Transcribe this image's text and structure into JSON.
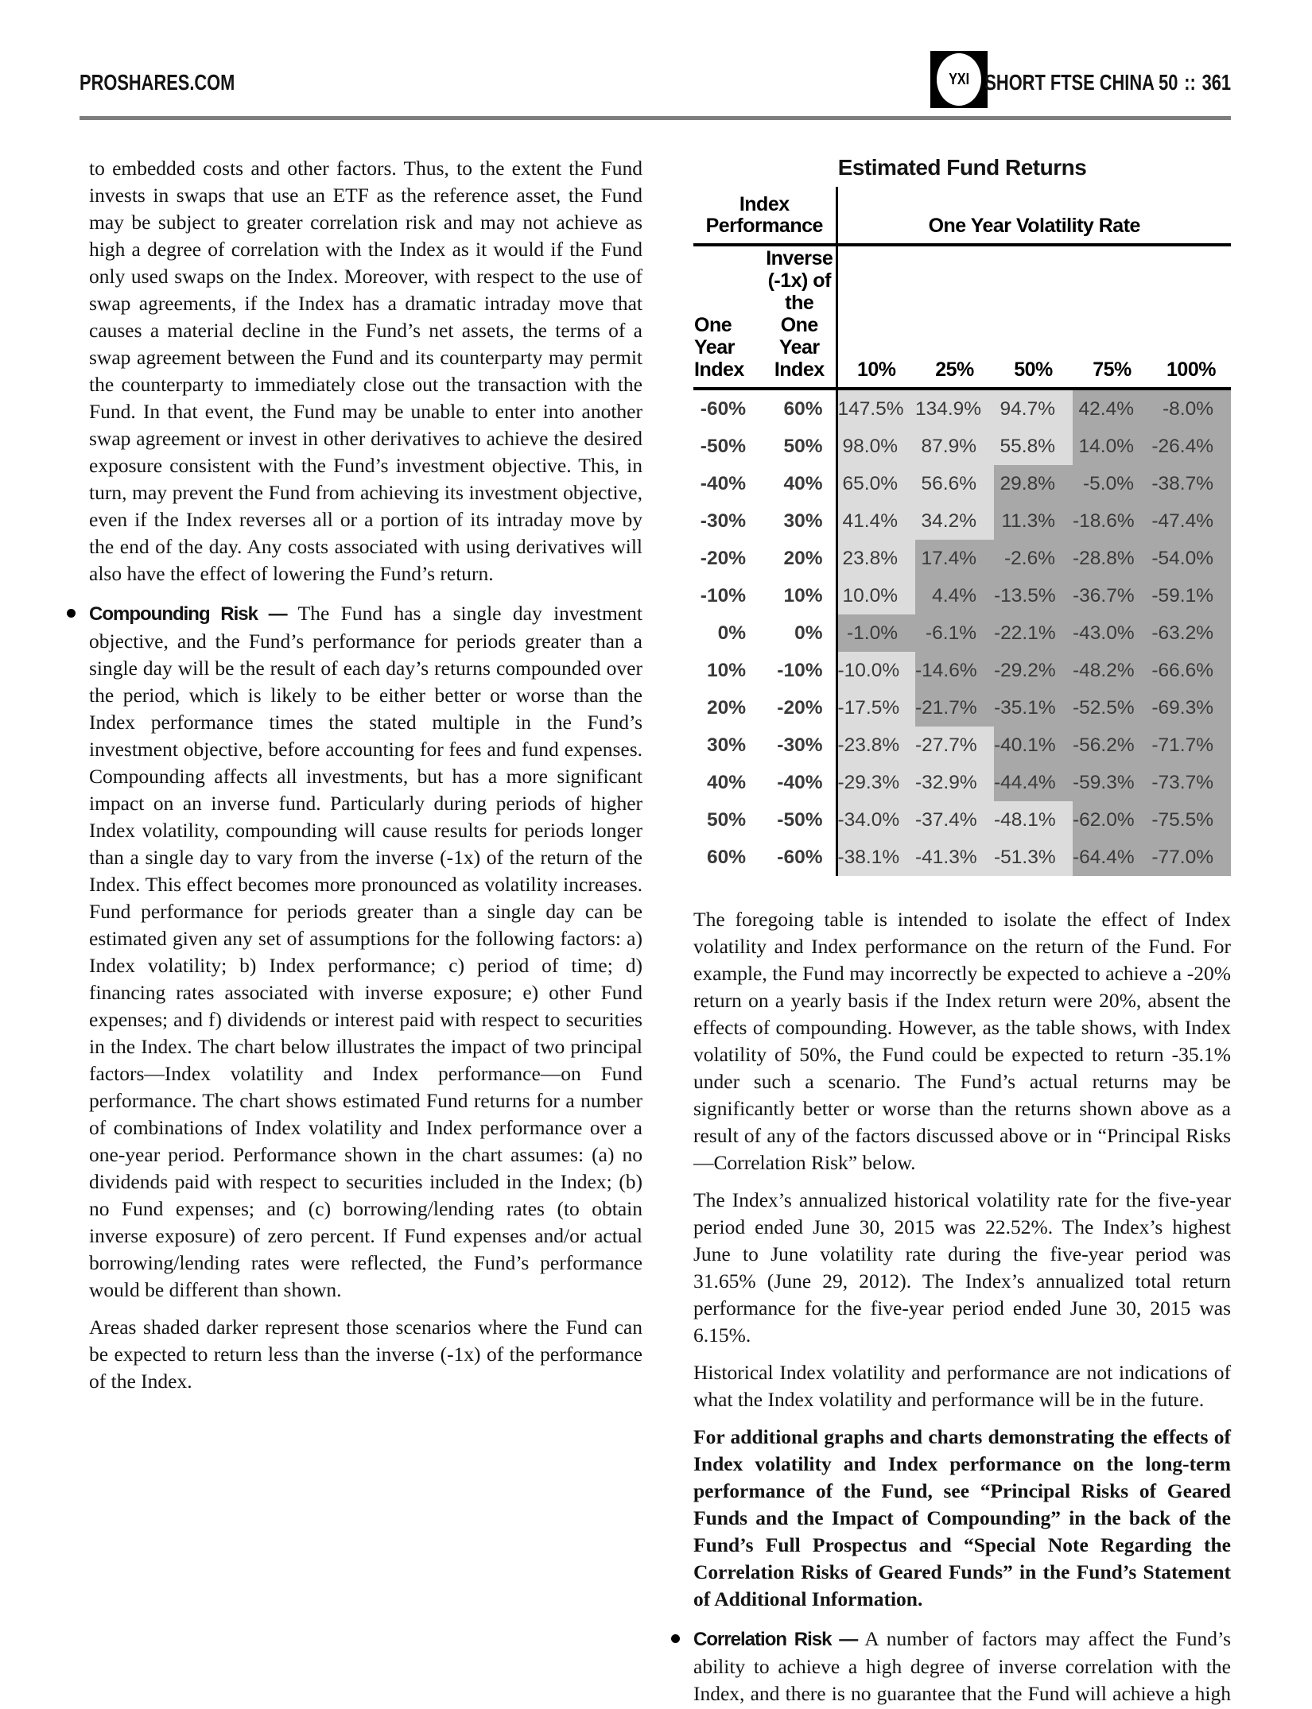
{
  "header": {
    "brand": "PROSHARES.COM",
    "badge": "YXI",
    "fund_name": "SHORT FTSE CHINA 50",
    "separator": "::",
    "page_number": "361"
  },
  "colors": {
    "light_shade": "#dcdcdc",
    "dark_shade": "#a8a8a8",
    "header_rule": "#7e7e7e"
  },
  "table": {
    "title": "Estimated Fund Returns",
    "group_left": "Index Performance",
    "group_right": "One Year Volatility Rate",
    "col1_header": "One Year Index",
    "col2_header": "Inverse (-1x) of the One Year Index",
    "vol_headers": [
      "10%",
      "25%",
      "50%",
      "75%",
      "100%"
    ],
    "shading_note": "dark cells = Fund expected to return less than the inverse (-1x) of the Index",
    "rows": [
      {
        "index": "-60%",
        "inverse": "60%",
        "values": [
          "147.5%",
          "134.9%",
          "94.7%",
          "42.4%",
          "-8.0%"
        ],
        "dark_from": 3
      },
      {
        "index": "-50%",
        "inverse": "50%",
        "values": [
          "98.0%",
          "87.9%",
          "55.8%",
          "14.0%",
          "-26.4%"
        ],
        "dark_from": 3
      },
      {
        "index": "-40%",
        "inverse": "40%",
        "values": [
          "65.0%",
          "56.6%",
          "29.8%",
          "-5.0%",
          "-38.7%"
        ],
        "dark_from": 2
      },
      {
        "index": "-30%",
        "inverse": "30%",
        "values": [
          "41.4%",
          "34.2%",
          "11.3%",
          "-18.6%",
          "-47.4%"
        ],
        "dark_from": 2
      },
      {
        "index": "-20%",
        "inverse": "20%",
        "values": [
          "23.8%",
          "17.4%",
          "-2.6%",
          "-28.8%",
          "-54.0%"
        ],
        "dark_from": 1
      },
      {
        "index": "-10%",
        "inverse": "10%",
        "values": [
          "10.0%",
          "4.4%",
          "-13.5%",
          "-36.7%",
          "-59.1%"
        ],
        "dark_from": 1
      },
      {
        "index": "0%",
        "inverse": "0%",
        "values": [
          "-1.0%",
          "-6.1%",
          "-22.1%",
          "-43.0%",
          "-63.2%"
        ],
        "dark_from": 0
      },
      {
        "index": "10%",
        "inverse": "-10%",
        "values": [
          "-10.0%",
          "-14.6%",
          "-29.2%",
          "-48.2%",
          "-66.6%"
        ],
        "dark_from": 1
      },
      {
        "index": "20%",
        "inverse": "-20%",
        "values": [
          "-17.5%",
          "-21.7%",
          "-35.1%",
          "-52.5%",
          "-69.3%"
        ],
        "dark_from": 1
      },
      {
        "index": "30%",
        "inverse": "-30%",
        "values": [
          "-23.8%",
          "-27.7%",
          "-40.1%",
          "-56.2%",
          "-71.7%"
        ],
        "dark_from": 2
      },
      {
        "index": "40%",
        "inverse": "-40%",
        "values": [
          "-29.3%",
          "-32.9%",
          "-44.4%",
          "-59.3%",
          "-73.7%"
        ],
        "dark_from": 2
      },
      {
        "index": "50%",
        "inverse": "-50%",
        "values": [
          "-34.0%",
          "-37.4%",
          "-48.1%",
          "-62.0%",
          "-75.5%"
        ],
        "dark_from": 3
      },
      {
        "index": "60%",
        "inverse": "-60%",
        "values": [
          "-38.1%",
          "-41.3%",
          "-51.3%",
          "-64.4%",
          "-77.0%"
        ],
        "dark_from": 3
      }
    ]
  },
  "left_column": {
    "p1": "to embedded costs and other factors. Thus, to the extent the Fund invests in swaps that use an ETF as the reference asset, the Fund may be subject to greater correlation risk and may not achieve as high a degree of correlation with the Index as it would if the Fund only used swaps on the Index. Moreover, with respect to the use of swap agreements, if the Index has a dramatic intraday move that causes a material decline in the Fund’s net assets, the terms of a swap agreement between the Fund and its counterparty may permit the counterparty to immediately close out the transaction with the Fund. In that event, the Fund may be unable to enter into another swap agreement or invest in other derivatives to achieve the desired exposure consistent with the Fund’s investment objective. This, in turn, may prevent the Fund from achieving its investment objective, even if the Index reverses all or a portion of its intraday move by the end of the day. Any costs associated with using derivatives will also have the effect of lowering the Fund’s return.",
    "bullet1_heading": "Compounding Risk —",
    "bullet1_text": "The Fund has a single day investment objective, and the Fund’s performance for periods greater than a single day will be the result of each day’s returns compounded over the period, which is likely to be either better or worse than the Index performance times the stated multiple in the Fund’s investment objective, before accounting for fees and fund expenses. Compounding affects all investments, but has a more significant impact on an inverse fund. Particularly during periods of higher Index volatility, compounding will cause results for periods longer than a single day to vary from the inverse (-1x) of the return of the Index. This effect becomes more pronounced as volatility increases. Fund performance for periods greater than a single day can be estimated given any set of assumptions for the following factors: a) Index volatility; b) Index performance; c) period of time; d) financing rates associated with inverse exposure; e) other Fund expenses; and f) dividends or interest paid with respect to securities in the Index. The chart below illustrates the impact of two principal factors—Index volatility and Index performance—on Fund performance. The chart shows estimated Fund returns for a number of combinations of Index volatility and Index performance over a one-year period. Performance shown in the chart assumes: (a) no dividends paid with respect to securities included in the Index; (b) no Fund expenses; and (c) borrowing/lending rates (to obtain inverse exposure) of zero percent. If Fund expenses and/or actual borrowing/lending rates were reflected, the Fund’s performance would be different than shown.",
    "p2": "Areas shaded darker represent those scenarios where the Fund can be expected to return less than the inverse (-1x) of the performance of the Index."
  },
  "right_column": {
    "p1": "The foregoing table is intended to isolate the effect of Index volatility and Index performance on the return of the Fund. For example, the Fund may incorrectly be expected to achieve a -20% return on a yearly basis if the Index return were 20%, absent the effects of compounding. However, as the table shows, with Index volatility of 50%, the Fund could be expected to return -35.1% under such a scenario. The Fund’s actual returns may be significantly better or worse than the returns shown above as a result of any of the factors discussed above or in “Principal Risks—Correlation Risk” below.",
    "p2": "The Index’s annualized historical volatility rate for the five-year period ended June 30, 2015 was 22.52%. The Index’s highest June to June volatility rate during the five-year period was 31.65% (June 29, 2012). The Index’s annualized total return performance for the five-year period ended June 30, 2015 was 6.15%.",
    "p3": "Historical Index volatility and performance are not indications of what the Index volatility and performance will be in the future.",
    "p4_bold": "For additional graphs and charts demonstrating the effects of Index volatility and Index performance on the long-term performance of the Fund, see “Principal Risks of Geared Funds and the Impact of Compounding” in the back of the Fund’s Full Prospectus and “Special Note Regarding the Correlation Risks of Geared Funds” in the Fund’s Statement of Additional Information.",
    "bullet2_heading": "Correlation Risk —",
    "bullet2_text": "A number of factors may affect the Fund’s ability to achieve a high degree of inverse correlation with the Index, and there is no guarantee that the Fund will achieve a high degree of inverse correlation. Failure to achieve a high degree of inverse correlation may prevent the Fund from"
  }
}
